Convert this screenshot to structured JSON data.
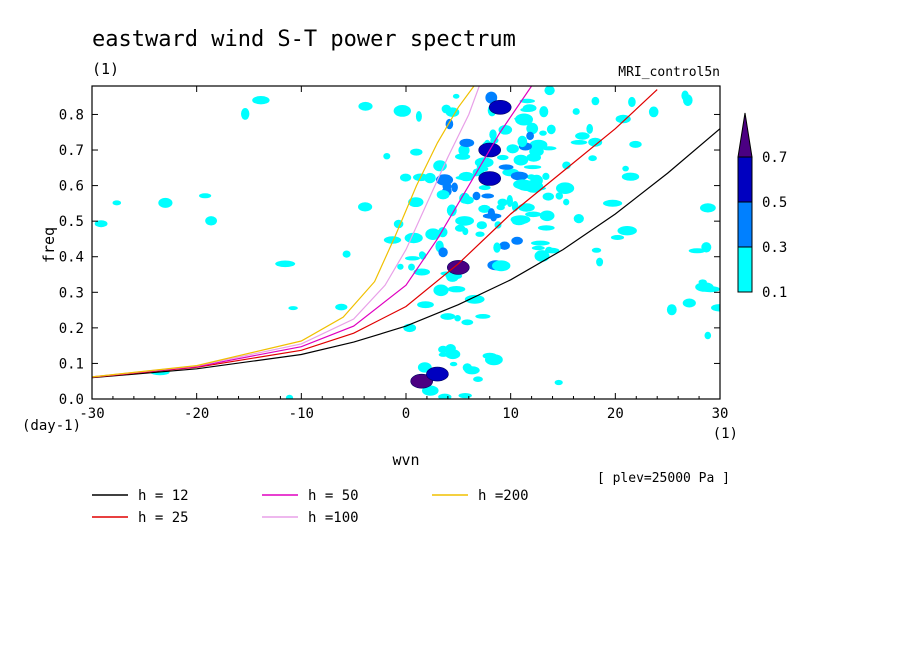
{
  "chart_data": {
    "type": "heatmap",
    "title": "eastward wind S-T power spectrum",
    "subtitle": "(1)",
    "dataset": "MRI_control5n",
    "xlabel": "wvn",
    "x_unit": "(1)",
    "ylabel": "freq",
    "y_unit": "(day-1)",
    "annotation": "[ plev=25000 Pa ]",
    "xlim": [
      -30,
      30
    ],
    "ylim": [
      0,
      0.88
    ],
    "x_ticks": [
      -30,
      -20,
      -10,
      0,
      10,
      20,
      30
    ],
    "y_ticks": [
      0.0,
      0.1,
      0.2,
      0.3,
      0.4,
      0.5,
      0.6,
      0.7,
      0.8
    ],
    "colorbar": {
      "levels": [
        0.1,
        0.3,
        0.5,
        0.7
      ],
      "labels": [
        "0.1",
        "0.3",
        "0.5",
        "0.7"
      ],
      "colors": [
        "#00ffff",
        "#0080ff",
        "#0000c0",
        "#4b0082"
      ]
    },
    "series": [
      {
        "name": "h = 12",
        "h": 12,
        "color": "#000000",
        "points": [
          [
            -30,
            0.06
          ],
          [
            -20,
            0.085
          ],
          [
            -10,
            0.125
          ],
          [
            -5,
            0.16
          ],
          [
            0,
            0.205
          ],
          [
            5,
            0.265
          ],
          [
            10,
            0.335
          ],
          [
            15,
            0.42
          ],
          [
            20,
            0.52
          ],
          [
            25,
            0.635
          ],
          [
            30,
            0.76
          ]
        ]
      },
      {
        "name": "h = 25",
        "h": 25,
        "color": "#e00000",
        "points": [
          [
            -30,
            0.061
          ],
          [
            -20,
            0.089
          ],
          [
            -10,
            0.137
          ],
          [
            -5,
            0.185
          ],
          [
            0,
            0.26
          ],
          [
            5,
            0.38
          ],
          [
            10,
            0.52
          ],
          [
            15,
            0.64
          ],
          [
            20,
            0.76
          ],
          [
            24,
            0.87
          ]
        ]
      },
      {
        "name": "h = 50",
        "h": 50,
        "color": "#e000c0",
        "points": [
          [
            -30,
            0.062
          ],
          [
            -20,
            0.091
          ],
          [
            -10,
            0.147
          ],
          [
            -5,
            0.205
          ],
          [
            0,
            0.32
          ],
          [
            3,
            0.45
          ],
          [
            6,
            0.6
          ],
          [
            9,
            0.75
          ],
          [
            12,
            0.88
          ]
        ]
      },
      {
        "name": "h =100",
        "h": 100,
        "color": "#e8a0e8",
        "points": [
          [
            -30,
            0.062
          ],
          [
            -20,
            0.093
          ],
          [
            -10,
            0.155
          ],
          [
            -5,
            0.225
          ],
          [
            -2,
            0.32
          ],
          [
            0,
            0.42
          ],
          [
            2,
            0.55
          ],
          [
            4,
            0.68
          ],
          [
            6,
            0.8
          ],
          [
            7,
            0.88
          ]
        ]
      },
      {
        "name": "h =200",
        "h": 200,
        "color": "#f0c000",
        "points": [
          [
            -30,
            0.062
          ],
          [
            -20,
            0.094
          ],
          [
            -10,
            0.163
          ],
          [
            -6,
            0.23
          ],
          [
            -3,
            0.33
          ],
          [
            -1,
            0.46
          ],
          [
            1,
            0.6
          ],
          [
            3,
            0.72
          ],
          [
            5,
            0.82
          ],
          [
            6.5,
            0.88
          ]
        ]
      }
    ],
    "features": [
      {
        "x": 1.5,
        "y": 0.05,
        "level": 0.7
      },
      {
        "x": 3,
        "y": 0.07,
        "level": 0.5
      },
      {
        "x": 5,
        "y": 0.37,
        "level": 0.7
      },
      {
        "x": 8,
        "y": 0.62,
        "level": 0.5
      },
      {
        "x": 8,
        "y": 0.7,
        "level": 0.5
      },
      {
        "x": 9,
        "y": 0.82,
        "level": 0.5
      }
    ]
  }
}
